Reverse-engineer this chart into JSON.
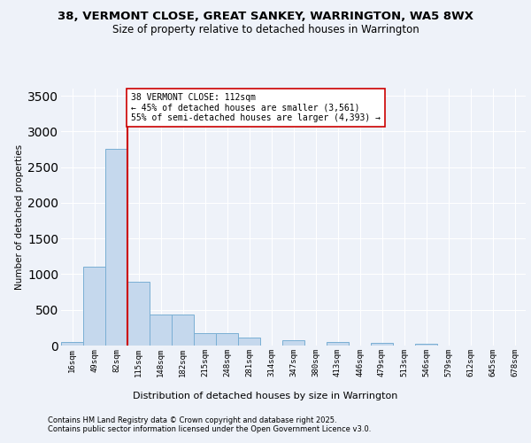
{
  "title_line1": "38, VERMONT CLOSE, GREAT SANKEY, WARRINGTON, WA5 8WX",
  "title_line2": "Size of property relative to detached houses in Warrington",
  "xlabel": "Distribution of detached houses by size in Warrington",
  "ylabel": "Number of detached properties",
  "bar_labels": [
    "16sqm",
    "49sqm",
    "82sqm",
    "115sqm",
    "148sqm",
    "182sqm",
    "215sqm",
    "248sqm",
    "281sqm",
    "314sqm",
    "347sqm",
    "380sqm",
    "413sqm",
    "446sqm",
    "479sqm",
    "513sqm",
    "546sqm",
    "579sqm",
    "612sqm",
    "645sqm",
    "678sqm"
  ],
  "bar_values": [
    50,
    1100,
    2750,
    900,
    430,
    430,
    175,
    175,
    110,
    0,
    80,
    0,
    50,
    0,
    40,
    0,
    30,
    0,
    0,
    0,
    0
  ],
  "bar_color": "#c5d8ed",
  "bar_edge_color": "#7aafd4",
  "vline_color": "#cc0000",
  "vline_x_index": 2.5,
  "annotation_text": "38 VERMONT CLOSE: 112sqm\n← 45% of detached houses are smaller (3,561)\n55% of semi-detached houses are larger (4,393) →",
  "annotation_box_color": "#ffffff",
  "annotation_box_edge": "#cc0000",
  "ylim": [
    0,
    3600
  ],
  "yticks": [
    0,
    500,
    1000,
    1500,
    2000,
    2500,
    3000,
    3500
  ],
  "footer_line1": "Contains HM Land Registry data © Crown copyright and database right 2025.",
  "footer_line2": "Contains public sector information licensed under the Open Government Licence v3.0.",
  "bg_color": "#eef2f9",
  "plot_bg_color": "#eef2f9",
  "grid_color": "#ffffff",
  "title_fontsize": 9.5,
  "subtitle_fontsize": 8.5,
  "ylabel_fontsize": 7.5,
  "xlabel_fontsize": 8,
  "tick_fontsize": 6.5,
  "annotation_fontsize": 7,
  "footer_fontsize": 6
}
